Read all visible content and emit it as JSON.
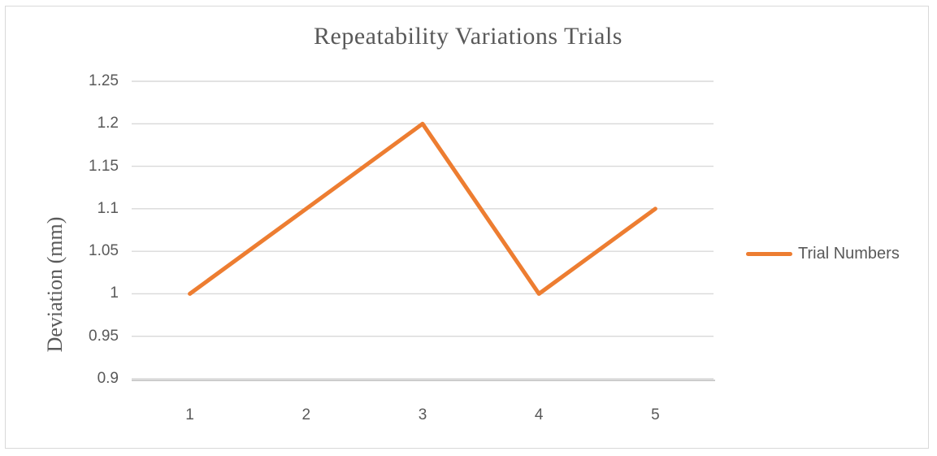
{
  "window": {
    "background": "#ffffff",
    "border_color": "#d9d9d9"
  },
  "chart_data": {
    "type": "line",
    "title": "Repeatability Variations Trials",
    "xlabel": "",
    "ylabel": "Deviation (mm)",
    "categories": [
      "1",
      "2",
      "3",
      "4",
      "5"
    ],
    "series": [
      {
        "name": "Trial Numbers",
        "color": "#ED7D31",
        "values": [
          1,
          1.1,
          1.2,
          1,
          1.1
        ]
      }
    ],
    "ylim": [
      0.9,
      1.25
    ],
    "ytick_values": [
      0.9,
      0.95,
      1,
      1.05,
      1.1,
      1.15,
      1.2,
      1.25
    ],
    "ytick_labels": [
      "0.9",
      "0.95",
      "1",
      "1.05",
      "1.1",
      "1.15",
      "1.2",
      "1.25"
    ],
    "grid": true,
    "legend_position": "right",
    "colors": {
      "gridline": "#d9d9d9",
      "axis_line": "#cccccc",
      "tick_text": "#595959",
      "title_text": "#595959"
    }
  }
}
